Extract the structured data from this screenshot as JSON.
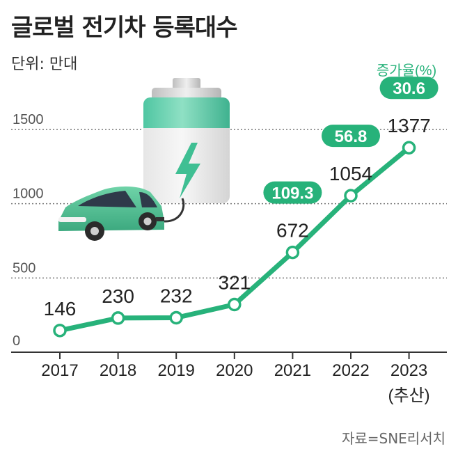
{
  "header": {
    "title": "글로벌 전기차 등록대수",
    "unit": "단위: 만대"
  },
  "source": "자료=SNE리서치",
  "colors": {
    "accent": "#27b27a",
    "accent_dark": "#1e9e6a",
    "grid": "#777777",
    "axis": "#333333"
  },
  "chart_data": {
    "type": "line",
    "x": [
      "2017",
      "2018",
      "2019",
      "2020",
      "2021",
      "2022",
      "2023"
    ],
    "x_sublabels": [
      "",
      "",
      "",
      "",
      "",
      "",
      "(추산)"
    ],
    "series": [
      {
        "values": [
          146,
          230,
          232,
          321,
          672,
          1054,
          1377
        ]
      }
    ],
    "data_labels": [
      "146",
      "230",
      "232",
      "321",
      "672",
      "1054",
      "1377"
    ],
    "growth_rate": {
      "label": "증가율(%)",
      "entries": [
        {
          "year": "2021",
          "value": "109.3"
        },
        {
          "year": "2022",
          "value": "56.8"
        },
        {
          "year": "2023",
          "value": "30.6"
        }
      ]
    },
    "yticks": [
      0,
      500,
      1000,
      1500
    ],
    "ylim": [
      0,
      1600
    ],
    "grid": true,
    "illustration": "electric-car-charging-from-battery"
  }
}
